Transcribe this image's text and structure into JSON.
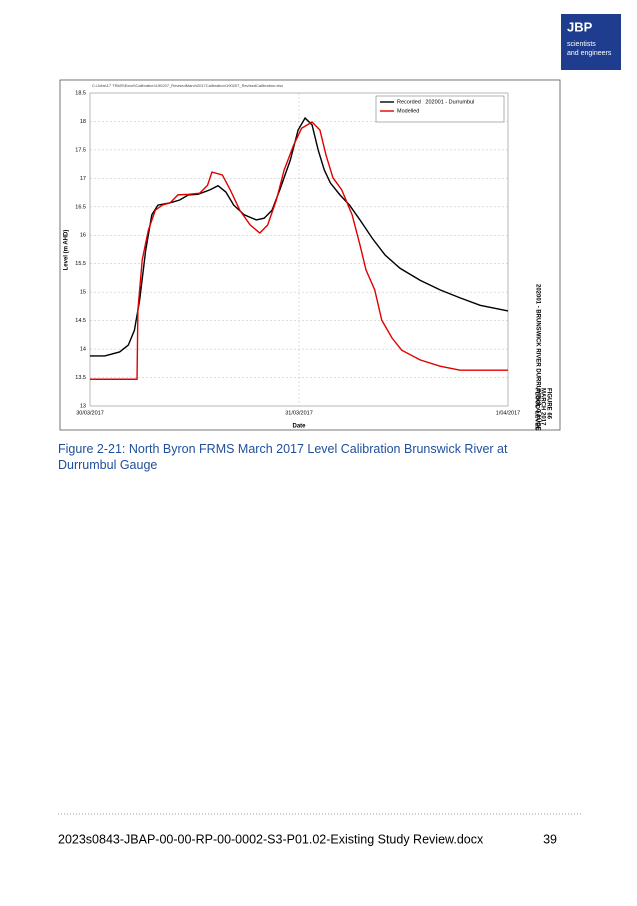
{
  "header": {
    "logo": {
      "title": "JBP",
      "subtitle": [
        "scientists",
        "and engineers"
      ]
    }
  },
  "chart_data": {
    "type": "line",
    "file_path": "C:\\Jobs\\17 TRMS\\Excel\\Calibration\\190207_RevisedMarch2017Calibration\\190207_RevisedCalibration.xlsx",
    "x_label": "Date",
    "y_label": "Level (m AHD)",
    "side_title": [
      "FIGURE 66",
      "MARCH 2017",
      "FLOOD LEVEL"
    ],
    "side_subtitle": "202001 - BRUNSWICK RIVER DURRUMBUL GAUGE",
    "xlim": [
      0,
      48
    ],
    "xticks": [
      {
        "value": 0,
        "label": "30/03/2017"
      },
      {
        "value": 24,
        "label": "31/03/2017"
      },
      {
        "value": 48,
        "label": "1/04/2017"
      }
    ],
    "ylim": [
      13,
      18.5
    ],
    "yticks": [
      13,
      13.5,
      14,
      14.5,
      15,
      15.5,
      16,
      16.5,
      17,
      17.5,
      18,
      18.5
    ],
    "grid": true,
    "legend": "top-right",
    "series": [
      {
        "name": "Recorded   202001 - Durrumbul",
        "color": "#000000",
        "x": [
          0,
          1.7,
          3.4,
          4.4,
          5.1,
          5.7,
          6.4,
          7.1,
          7.8,
          9.2,
          10.3,
          11.3,
          12.4,
          13.8,
          14.7,
          15.6,
          16.5,
          17.7,
          19.1,
          20,
          20.9,
          21.8,
          23,
          23.9,
          24.7,
          25.5,
          26.2,
          26.9,
          27.6,
          28.7,
          29.8,
          31,
          32.4,
          33.9,
          35.6,
          37.9,
          40.2,
          42.5,
          44.8,
          48
        ],
        "values": [
          13.88,
          13.88,
          13.95,
          14.07,
          14.33,
          14.86,
          15.74,
          16.36,
          16.53,
          16.57,
          16.62,
          16.71,
          16.72,
          16.8,
          16.87,
          16.76,
          16.53,
          16.36,
          16.27,
          16.3,
          16.44,
          16.8,
          17.32,
          17.85,
          18.06,
          17.94,
          17.5,
          17.15,
          16.92,
          16.71,
          16.53,
          16.27,
          15.95,
          15.65,
          15.42,
          15.21,
          15.04,
          14.9,
          14.77,
          14.67
        ]
      },
      {
        "name": "Modelled",
        "color": "#e00000",
        "x": [
          0,
          5.4,
          5.5,
          6,
          6.7,
          7.5,
          8.3,
          9.2,
          10.1,
          11.3,
          12.6,
          13.5,
          14,
          15.2,
          16.1,
          17.2,
          18.4,
          19.5,
          20.4,
          21.4,
          22.3,
          23.4,
          24.3,
          25.5,
          26.4,
          27.1,
          27.9,
          28.9,
          30.1,
          31,
          31.7,
          32.7,
          33.5,
          34.7,
          35.8,
          37.9,
          40.2,
          42.5,
          48
        ],
        "values": [
          13.47,
          13.47,
          14.69,
          15.57,
          16.09,
          16.44,
          16.53,
          16.57,
          16.71,
          16.72,
          16.74,
          16.88,
          17.11,
          17.06,
          16.8,
          16.44,
          16.18,
          16.04,
          16.18,
          16.62,
          17.15,
          17.59,
          17.88,
          17.99,
          17.85,
          17.41,
          17.01,
          16.8,
          16.36,
          15.83,
          15.39,
          15.04,
          14.51,
          14.19,
          13.98,
          13.81,
          13.7,
          13.63,
          13.63
        ]
      }
    ]
  },
  "caption": "Figure 2-21: North Byron FRMS March 2017 Level Calibration Brunswick River at Durrumbul Gauge",
  "footer": {
    "document": "2023s0843-JBAP-00-00-RP-00-0002-S3-P01.02-Existing Study Review.docx",
    "page": "39"
  }
}
